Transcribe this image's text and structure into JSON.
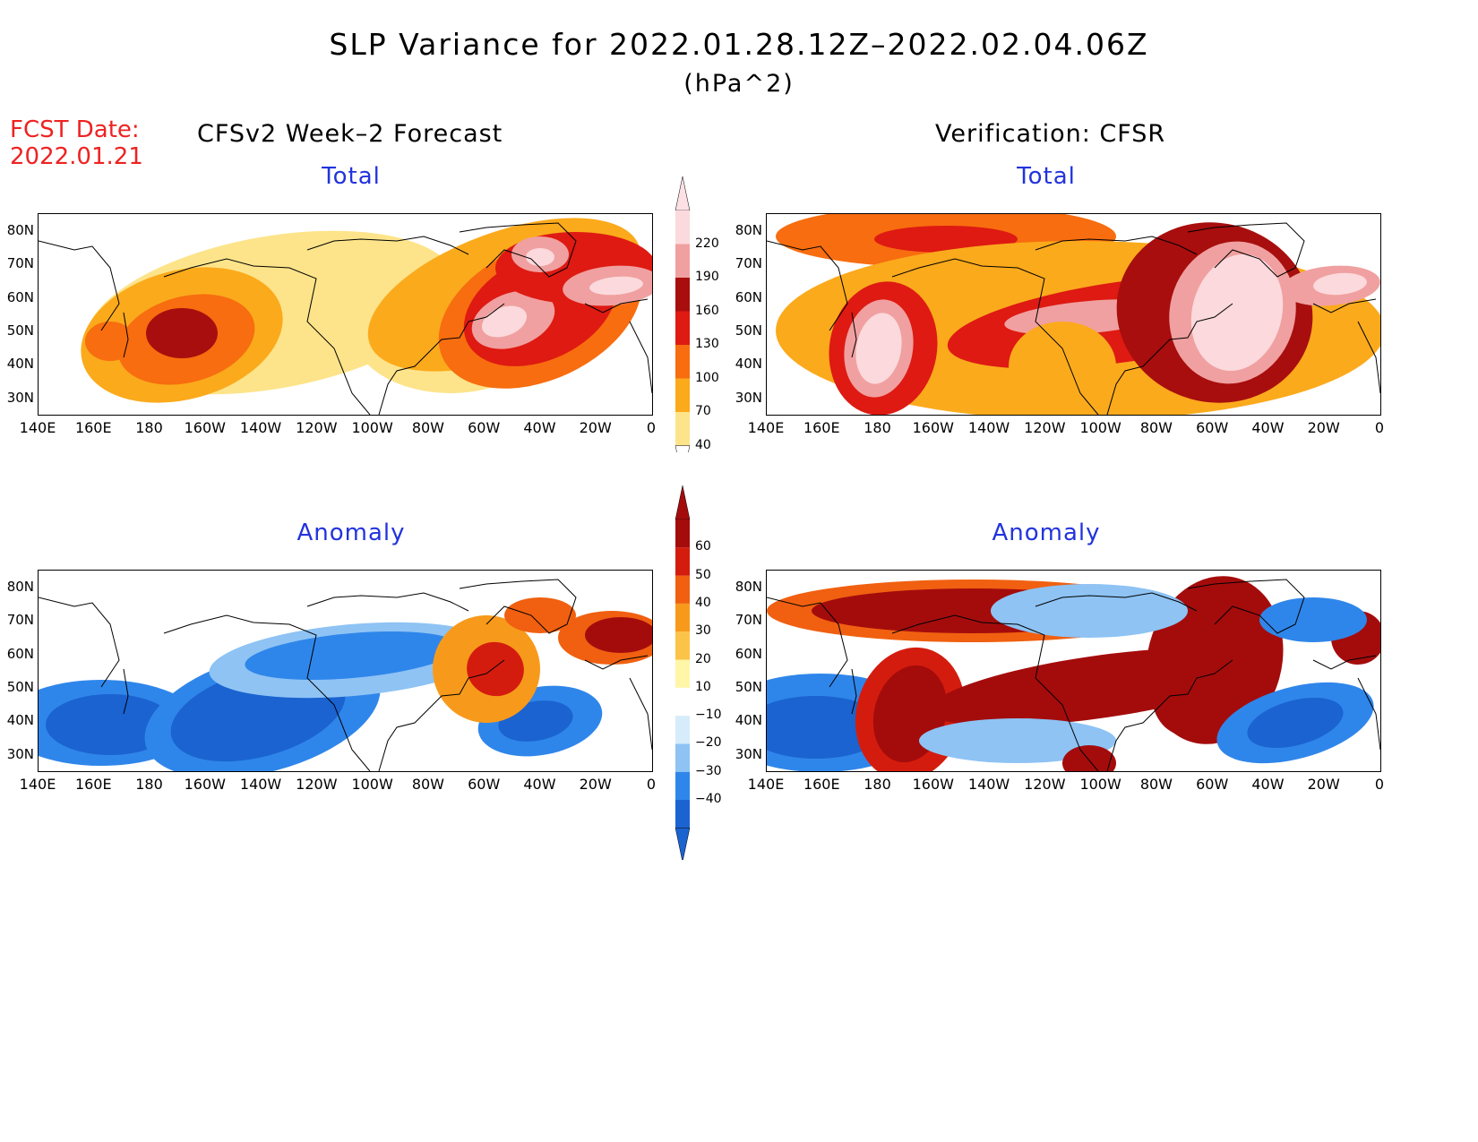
{
  "title": "SLP Variance for 2022.01.28.12Z–2022.02.04.06Z",
  "units": "(hPa^2)",
  "fcst_label": "FCST Date:",
  "fcst_date": "2022.01.21",
  "left_header": "CFSv2 Week–2 Forecast",
  "right_header": "Verification: CFSR",
  "panels": {
    "total_label": "Total",
    "anomaly_label": "Anomaly"
  },
  "lat_ticks": [
    "80N",
    "70N",
    "60N",
    "50N",
    "40N",
    "30N"
  ],
  "lon_ticks": [
    "140E",
    "160E",
    "180",
    "160W",
    "140W",
    "120W",
    "100W",
    "80W",
    "60W",
    "40W",
    "20W",
    "0"
  ],
  "colorbar_total": {
    "levels": [
      "40",
      "70",
      "100",
      "130",
      "160",
      "190",
      "220"
    ],
    "colors": [
      "#fde48a",
      "#fbaa1c",
      "#f76d0f",
      "#de1a12",
      "#a80e0e",
      "#f0a0a0",
      "#fbd9dc"
    ]
  },
  "colorbar_anomaly": {
    "levels": [
      "−40",
      "−30",
      "−20",
      "−10",
      "10",
      "20",
      "30",
      "40",
      "50",
      "60"
    ],
    "colors": [
      "#1a63d0",
      "#2f86ea",
      "#8ec3f4",
      "#d6ecfb",
      "#ffffff",
      "#fff6a8",
      "#fcc349",
      "#f79a1b",
      "#f06010",
      "#d41c0e",
      "#a40c0c"
    ]
  }
}
